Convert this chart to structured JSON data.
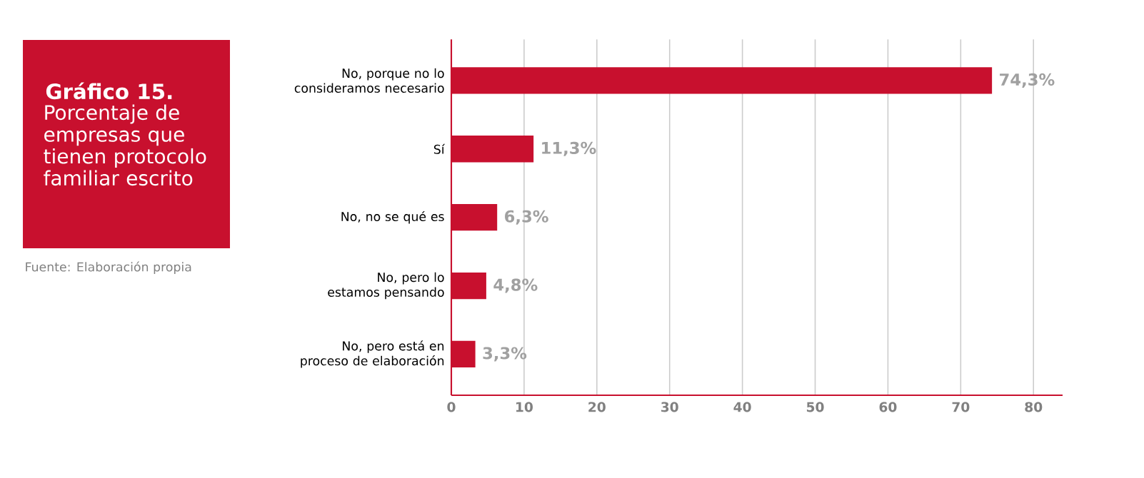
{
  "chart_data": {
    "type": "bar",
    "orientation": "horizontal",
    "title": "Gráfico 15.",
    "subtitle": "Porcentaje de empresas que tienen protocolo familiar escrito",
    "annotations": [
      "Fuente: Elaboración propia"
    ],
    "categories": [
      "No, porque no lo consideramos necesario",
      "Sí",
      "No, no se qué es",
      "No, pero lo estamos pensando",
      "No, pero está en proceso de elaboración"
    ],
    "values": [
      74.3,
      11.3,
      6.3,
      4.8,
      3.3
    ],
    "value_labels": [
      "74,3%",
      "11,3%",
      "6,3%",
      "4,8%",
      "3,3%"
    ],
    "color": "#c8102e",
    "xlim": [
      0,
      84
    ],
    "xticks": [
      0,
      10,
      20,
      30,
      40,
      50,
      60,
      70,
      80
    ],
    "grid": "x"
  }
}
